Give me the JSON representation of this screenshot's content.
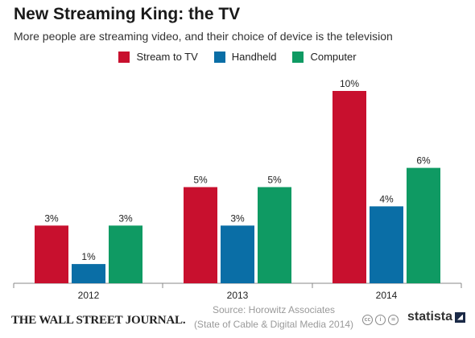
{
  "header": {
    "title": "New Streaming King: the TV",
    "subtitle": "More people are streaming video, and their choice of device is the television"
  },
  "footer": {
    "publisher": "THE WALL STREET JOURNAL.",
    "source_line1": "Source: Horowitz Associates",
    "source_line2": "(State of Cable & Digital Media 2014)",
    "brand": "statista"
  },
  "chart_data": {
    "type": "bar",
    "categories": [
      "2012",
      "2013",
      "2014"
    ],
    "series": [
      {
        "name": "Stream to TV",
        "color": "#c8102e",
        "values": [
          3,
          5,
          10
        ],
        "labels": [
          "3%",
          "5%",
          "10%"
        ]
      },
      {
        "name": "Handheld",
        "color": "#0a6ea6",
        "values": [
          1,
          3,
          4
        ],
        "labels": [
          "1%",
          "3%",
          "4%"
        ]
      },
      {
        "name": "Computer",
        "color": "#0f9a63",
        "values": [
          3,
          5,
          6
        ],
        "labels": [
          "3%",
          "5%",
          "6%"
        ]
      }
    ],
    "ylim": [
      0,
      10
    ],
    "grid": false,
    "legend_position": "top-center"
  }
}
